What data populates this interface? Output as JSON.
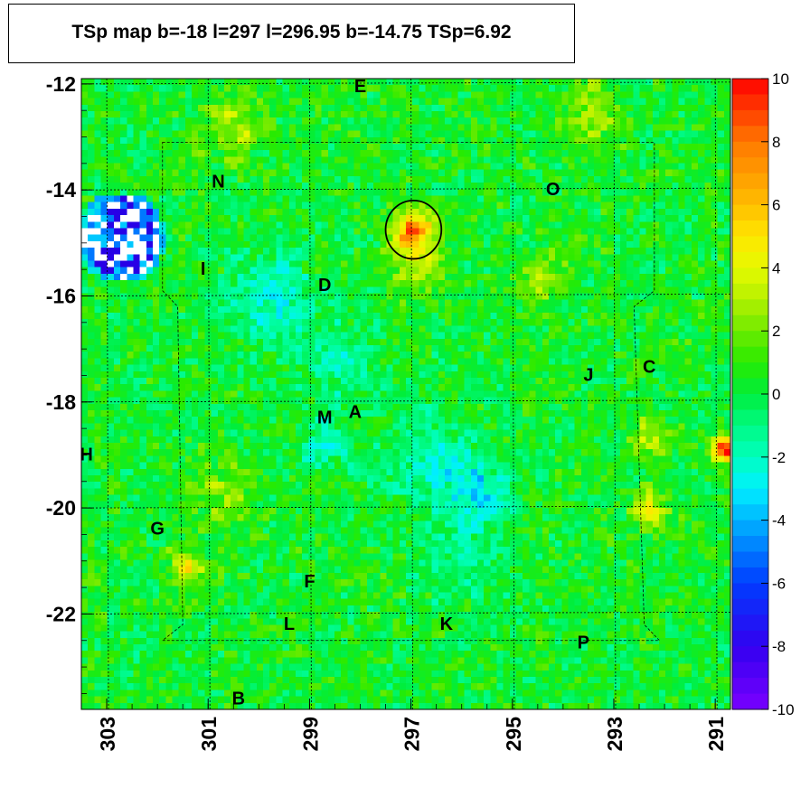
{
  "chart_data": {
    "type": "heatmap",
    "title": "TSp map b=-18 l=297 l=296.95 b=-14.75 TSp=6.92",
    "xlabel": "",
    "ylabel": "",
    "x_reversed": true,
    "xlim": [
      303.5,
      290.7
    ],
    "ylim": [
      -23.8,
      -11.9
    ],
    "x_ticks": [
      303,
      301,
      299,
      297,
      295,
      293,
      291
    ],
    "y_ticks": [
      -12,
      -14,
      -16,
      -18,
      -20,
      -22
    ],
    "zlim": [
      -10,
      10
    ],
    "colorbar_ticks": [
      10,
      8,
      6,
      4,
      2,
      0,
      -2,
      -4,
      -6,
      -8,
      -10
    ],
    "background_ts": 0.3,
    "hotspots": [
      {
        "l": 296.95,
        "b": -14.75,
        "ts": 6.9,
        "r": 0.4
      },
      {
        "l": 296.9,
        "b": -15.4,
        "ts": 3.0,
        "r": 0.5
      },
      {
        "l": 290.8,
        "b": -18.9,
        "ts": 9.5,
        "r": 0.25
      },
      {
        "l": 292.3,
        "b": -20.0,
        "ts": 3.8,
        "r": 0.35
      },
      {
        "l": 301.4,
        "b": -21.1,
        "ts": 3.8,
        "r": 0.35
      },
      {
        "l": 299.8,
        "b": -16.0,
        "ts": -2.5,
        "r": 0.8
      },
      {
        "l": 298.5,
        "b": -17.2,
        "ts": -2.0,
        "r": 0.7
      },
      {
        "l": 296.5,
        "b": -19.2,
        "ts": -2.5,
        "r": 0.9
      },
      {
        "l": 295.6,
        "b": -19.8,
        "ts": -3.5,
        "r": 0.5
      },
      {
        "l": 298.7,
        "b": -18.8,
        "ts": -2.2,
        "r": 0.5
      },
      {
        "l": 296.0,
        "b": -21.0,
        "ts": -1.5,
        "r": 0.8
      },
      {
        "l": 293.5,
        "b": -12.5,
        "ts": 2.5,
        "r": 0.6
      },
      {
        "l": 300.5,
        "b": -12.8,
        "ts": 2.8,
        "r": 0.6
      },
      {
        "l": 294.5,
        "b": -15.7,
        "ts": 2.4,
        "r": 0.5
      },
      {
        "l": 300.7,
        "b": -19.7,
        "ts": 2.2,
        "r": 0.6
      },
      {
        "l": 292.3,
        "b": -18.7,
        "ts": 2.6,
        "r": 0.4
      }
    ],
    "outlier_region": {
      "l_min": 301.9,
      "l_max": 303.5,
      "b_min": -15.7,
      "b_max": -14.1
    },
    "circle": {
      "l": 296.95,
      "b": -14.75,
      "r": 0.55
    },
    "labels": [
      {
        "text": "E",
        "l": 298.0,
        "b": -12.05
      },
      {
        "text": "N",
        "l": 300.8,
        "b": -13.85
      },
      {
        "text": "O",
        "l": 294.2,
        "b": -14.0
      },
      {
        "text": "I",
        "l": 301.1,
        "b": -15.5
      },
      {
        "text": "D",
        "l": 298.7,
        "b": -15.8
      },
      {
        "text": "J",
        "l": 293.5,
        "b": -17.5
      },
      {
        "text": "C",
        "l": 292.3,
        "b": -17.35
      },
      {
        "text": "M",
        "l": 298.7,
        "b": -18.3
      },
      {
        "text": "A",
        "l": 298.1,
        "b": -18.2
      },
      {
        "text": "H",
        "l": 303.4,
        "b": -19.0
      },
      {
        "text": "G",
        "l": 302.0,
        "b": -20.4
      },
      {
        "text": "F",
        "l": 299.0,
        "b": -21.4
      },
      {
        "text": "L",
        "l": 299.4,
        "b": -22.2
      },
      {
        "text": "K",
        "l": 296.3,
        "b": -22.2
      },
      {
        "text": "P",
        "l": 293.6,
        "b": -22.55
      },
      {
        "text": "B",
        "l": 300.4,
        "b": -23.6
      }
    ]
  }
}
